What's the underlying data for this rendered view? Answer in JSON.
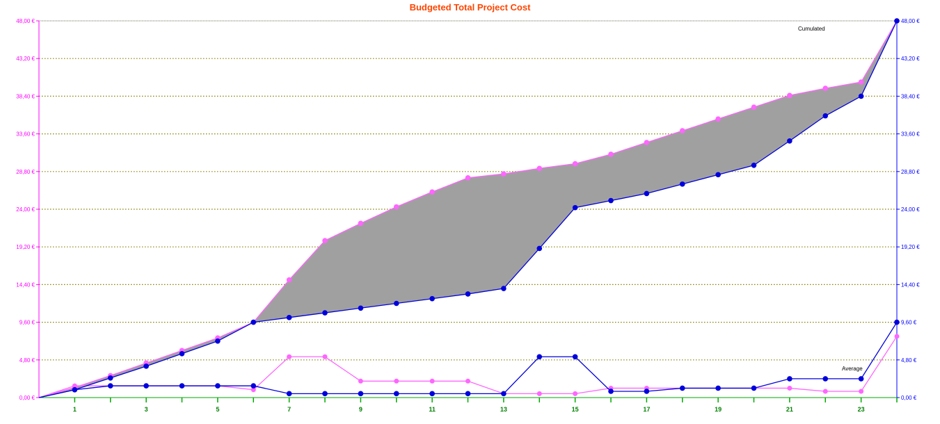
{
  "colors": {
    "title": "#ff4500",
    "left_axis": "#ff00ff",
    "right_axis": "#0000ff",
    "x_axis": "#008000",
    "grid": "#808000",
    "fill": "#a0a0a0",
    "magenta_series": "#ff66ff",
    "magenta_marker": "#ff66ff",
    "blue_series": "#0000dd",
    "blue_marker": "#0000dd",
    "axis_line": "#00aa00"
  },
  "chart_data": {
    "type": "line",
    "title": "Budgeted Total Project Cost",
    "annotations": {
      "cumulated": "Cumulated",
      "average": "Average"
    },
    "x": [
      0,
      1,
      2,
      3,
      4,
      5,
      6,
      7,
      8,
      9,
      10,
      11,
      12,
      13,
      14,
      15,
      16,
      17,
      18,
      19,
      20,
      21,
      22,
      23,
      24
    ],
    "x_tick_labels": [
      "1",
      "3",
      "5",
      "7",
      "9",
      "11",
      "13",
      "15",
      "17",
      "19",
      "21",
      "23"
    ],
    "x_tick_values": [
      1,
      3,
      5,
      7,
      9,
      11,
      13,
      15,
      17,
      19,
      21,
      23
    ],
    "ylim_left": [
      0,
      48
    ],
    "ylim_right": [
      0,
      48
    ],
    "y_left_tick_labels": [
      "0,00 €",
      "4,80 €",
      "9,60 €",
      "14,40 €",
      "19,20 €",
      "24,00 €",
      "28,80 €",
      "33,60 €",
      "38,40 €",
      "43,20 €",
      "48,00 €"
    ],
    "y_right_tick_labels": [
      "0,00 €",
      "4,80 €",
      "9,60 €",
      "14,40 €",
      "19,20 €",
      "24,00 €",
      "28,80 €",
      "33,60 €",
      "38,40 €",
      "43,20 €",
      "48,00 €"
    ],
    "y_tick_values": [
      0,
      4.8,
      9.6,
      14.4,
      19.2,
      24,
      28.8,
      33.6,
      38.4,
      43.2,
      48
    ],
    "grid": true,
    "series": [
      {
        "values": [
          0,
          1.3,
          2.8,
          4.4,
          6.0,
          7.6,
          9.6,
          15.0,
          20.0,
          22.2,
          24.3,
          26.2,
          28.0,
          28.5,
          29.2,
          29.8,
          31.0,
          32.5,
          34.0,
          35.5,
          37.0,
          38.5,
          39.4,
          40.2,
          48.0
        ]
      },
      {
        "values": [
          0,
          1.0,
          2.5,
          4.0,
          5.6,
          7.2,
          9.6,
          10.2,
          10.8,
          11.4,
          12.0,
          12.6,
          13.2,
          13.9,
          19.0,
          24.2,
          25.1,
          26.0,
          27.2,
          28.4,
          29.6,
          32.7,
          35.9,
          38.4,
          48.0
        ]
      },
      {
        "values": [
          0,
          1.5,
          1.5,
          1.5,
          1.5,
          1.5,
          1.0,
          5.2,
          5.2,
          2.1,
          2.1,
          2.1,
          2.1,
          0.5,
          0.5,
          0.5,
          1.2,
          1.2,
          1.2,
          1.2,
          1.2,
          1.2,
          0.8,
          0.8,
          7.8
        ]
      },
      {
        "values": [
          0,
          1.0,
          1.5,
          1.5,
          1.5,
          1.5,
          1.5,
          0.5,
          0.5,
          0.5,
          0.5,
          0.5,
          0.5,
          0.5,
          5.2,
          5.2,
          0.8,
          0.8,
          1.2,
          1.2,
          1.2,
          2.4,
          2.4,
          2.4,
          9.6
        ]
      }
    ]
  }
}
